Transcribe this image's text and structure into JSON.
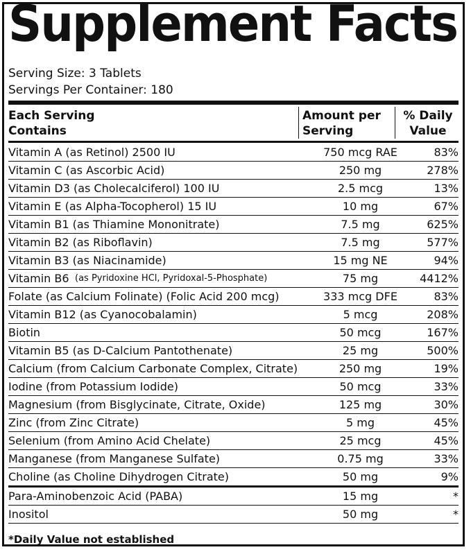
{
  "title": "Supplement Facts",
  "serving_size": "Serving Size: 3 Tablets",
  "servings_per_container": "Servings Per Container: 180",
  "headers": {
    "col1_line1": "Each Serving",
    "col1_line2": "Contains",
    "col2_line1": "Amount per",
    "col2_line2": "Serving",
    "col3_line1": "% Daily",
    "col3_line2": "Value"
  },
  "rows": [
    {
      "name": "Vitamin A (as Retinol) 2500 IU",
      "amount": "750 mcg RAE",
      "dv": "83%"
    },
    {
      "name": "Vitamin C (as Ascorbic Acid)",
      "amount": "250 mg",
      "dv": "278%"
    },
    {
      "name": "Vitamin D3 (as Cholecalciferol) 100 IU",
      "amount": "2.5 mcg",
      "dv": "13%"
    },
    {
      "name": "Vitamin E (as Alpha-Tocopherol) 15 IU",
      "amount": "10 mg",
      "dv": "67%"
    },
    {
      "name": "Vitamin B1 (as Thiamine Mononitrate)",
      "amount": "7.5 mg",
      "dv": "625%"
    },
    {
      "name": "Vitamin B2 (as Riboflavin)",
      "amount": "7.5 mg",
      "dv": "577%"
    },
    {
      "name": "Vitamin B3 (as Niacinamide)",
      "amount": "15 mg NE",
      "dv": "94%"
    },
    {
      "name": "Vitamin B6",
      "name_sub": "(as Pyridoxine HCl, Pyridoxal-5-Phosphate)",
      "amount": "75 mg",
      "dv": "4412%"
    },
    {
      "name": "Folate (as Calcium Folinate) (Folic Acid 200 mcg)",
      "amount": "333 mcg DFE",
      "dv": "83%"
    },
    {
      "name": "Vitamin B12 (as Cyanocobalamin)",
      "amount": "5 mcg",
      "dv": "208%"
    },
    {
      "name": "Biotin",
      "amount": "50 mcg",
      "dv": "167%"
    },
    {
      "name": "Vitamin B5 (as D-Calcium Pantothenate)",
      "amount": "25 mg",
      "dv": "500%"
    },
    {
      "name": "Calcium (from Calcium Carbonate Complex, Citrate)",
      "amount": "250 mg",
      "dv": "19%"
    },
    {
      "name": "Iodine (from Potassium Iodide)",
      "amount": "50 mcg",
      "dv": "33%"
    },
    {
      "name": "Magnesium (from Bisglycinate, Citrate, Oxide)",
      "amount": "125 mg",
      "dv": "30%"
    },
    {
      "name": "Zinc (from Zinc Citrate)",
      "amount": "5 mg",
      "dv": "45%"
    },
    {
      "name": "Selenium (from Amino Acid Chelate)",
      "amount": "25 mcg",
      "dv": "45%"
    },
    {
      "name": "Manganese (from Manganese Sulfate)",
      "amount": "0.75 mg",
      "dv": "33%"
    },
    {
      "name": "Choline (as Choline Dihydrogen Citrate)",
      "amount": "50 mg",
      "dv": "9%"
    },
    {
      "name": "Para-Aminobenzoic Acid (PABA)",
      "amount": "15 mg",
      "dv": "*"
    },
    {
      "name": "Inositol",
      "amount": "50 mg",
      "dv": "*"
    }
  ],
  "footnote": "*Daily Value not established"
}
